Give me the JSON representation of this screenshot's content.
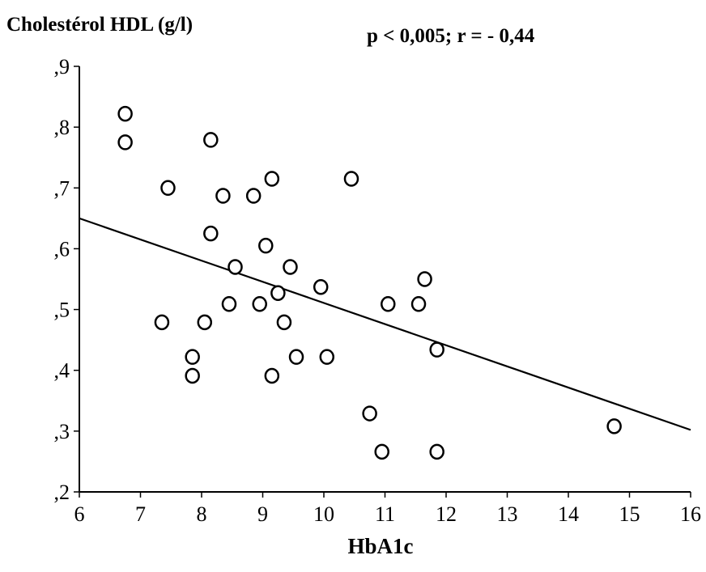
{
  "chart_data": {
    "type": "scatter",
    "title": "",
    "ylabel": "Cholestérol HDL (g/l)",
    "xlabel": "HbA1c",
    "annotation": "p < 0,005; r = - 0,44",
    "xlim": [
      6,
      16
    ],
    "ylim": [
      0.2,
      0.9
    ],
    "x_ticks": [
      6,
      7,
      8,
      9,
      10,
      11,
      12,
      13,
      14,
      15,
      16
    ],
    "x_tick_labels": [
      "6",
      "7",
      "8",
      "9",
      "10",
      "11",
      "12",
      "13",
      "14",
      "15",
      "16"
    ],
    "y_ticks": [
      0.2,
      0.3,
      0.4,
      0.5,
      0.6,
      0.7,
      0.8,
      0.9
    ],
    "y_tick_labels": [
      ",2",
      ",3",
      ",4",
      ",5",
      ",6",
      ",7",
      ",8",
      ",9"
    ],
    "grid": false,
    "legend": "none",
    "regression_line": {
      "x": [
        6,
        16
      ],
      "y": [
        0.65,
        0.302
      ]
    },
    "points": [
      {
        "x": 6.75,
        "y": 0.822
      },
      {
        "x": 6.75,
        "y": 0.775
      },
      {
        "x": 7.45,
        "y": 0.7
      },
      {
        "x": 8.15,
        "y": 0.779
      },
      {
        "x": 7.35,
        "y": 0.479
      },
      {
        "x": 7.85,
        "y": 0.422
      },
      {
        "x": 7.85,
        "y": 0.391
      },
      {
        "x": 8.05,
        "y": 0.479
      },
      {
        "x": 8.15,
        "y": 0.625
      },
      {
        "x": 8.35,
        "y": 0.687
      },
      {
        "x": 8.45,
        "y": 0.509
      },
      {
        "x": 8.55,
        "y": 0.57
      },
      {
        "x": 8.85,
        "y": 0.687
      },
      {
        "x": 8.95,
        "y": 0.509
      },
      {
        "x": 9.05,
        "y": 0.605
      },
      {
        "x": 9.15,
        "y": 0.715
      },
      {
        "x": 9.15,
        "y": 0.391
      },
      {
        "x": 9.25,
        "y": 0.527
      },
      {
        "x": 9.35,
        "y": 0.479
      },
      {
        "x": 9.45,
        "y": 0.57
      },
      {
        "x": 9.55,
        "y": 0.422
      },
      {
        "x": 9.95,
        "y": 0.537
      },
      {
        "x": 10.05,
        "y": 0.422
      },
      {
        "x": 10.45,
        "y": 0.715
      },
      {
        "x": 10.75,
        "y": 0.329
      },
      {
        "x": 10.95,
        "y": 0.266
      },
      {
        "x": 11.05,
        "y": 0.509
      },
      {
        "x": 11.55,
        "y": 0.509
      },
      {
        "x": 11.65,
        "y": 0.55
      },
      {
        "x": 11.85,
        "y": 0.266
      },
      {
        "x": 11.85,
        "y": 0.434
      },
      {
        "x": 14.75,
        "y": 0.308
      }
    ]
  }
}
